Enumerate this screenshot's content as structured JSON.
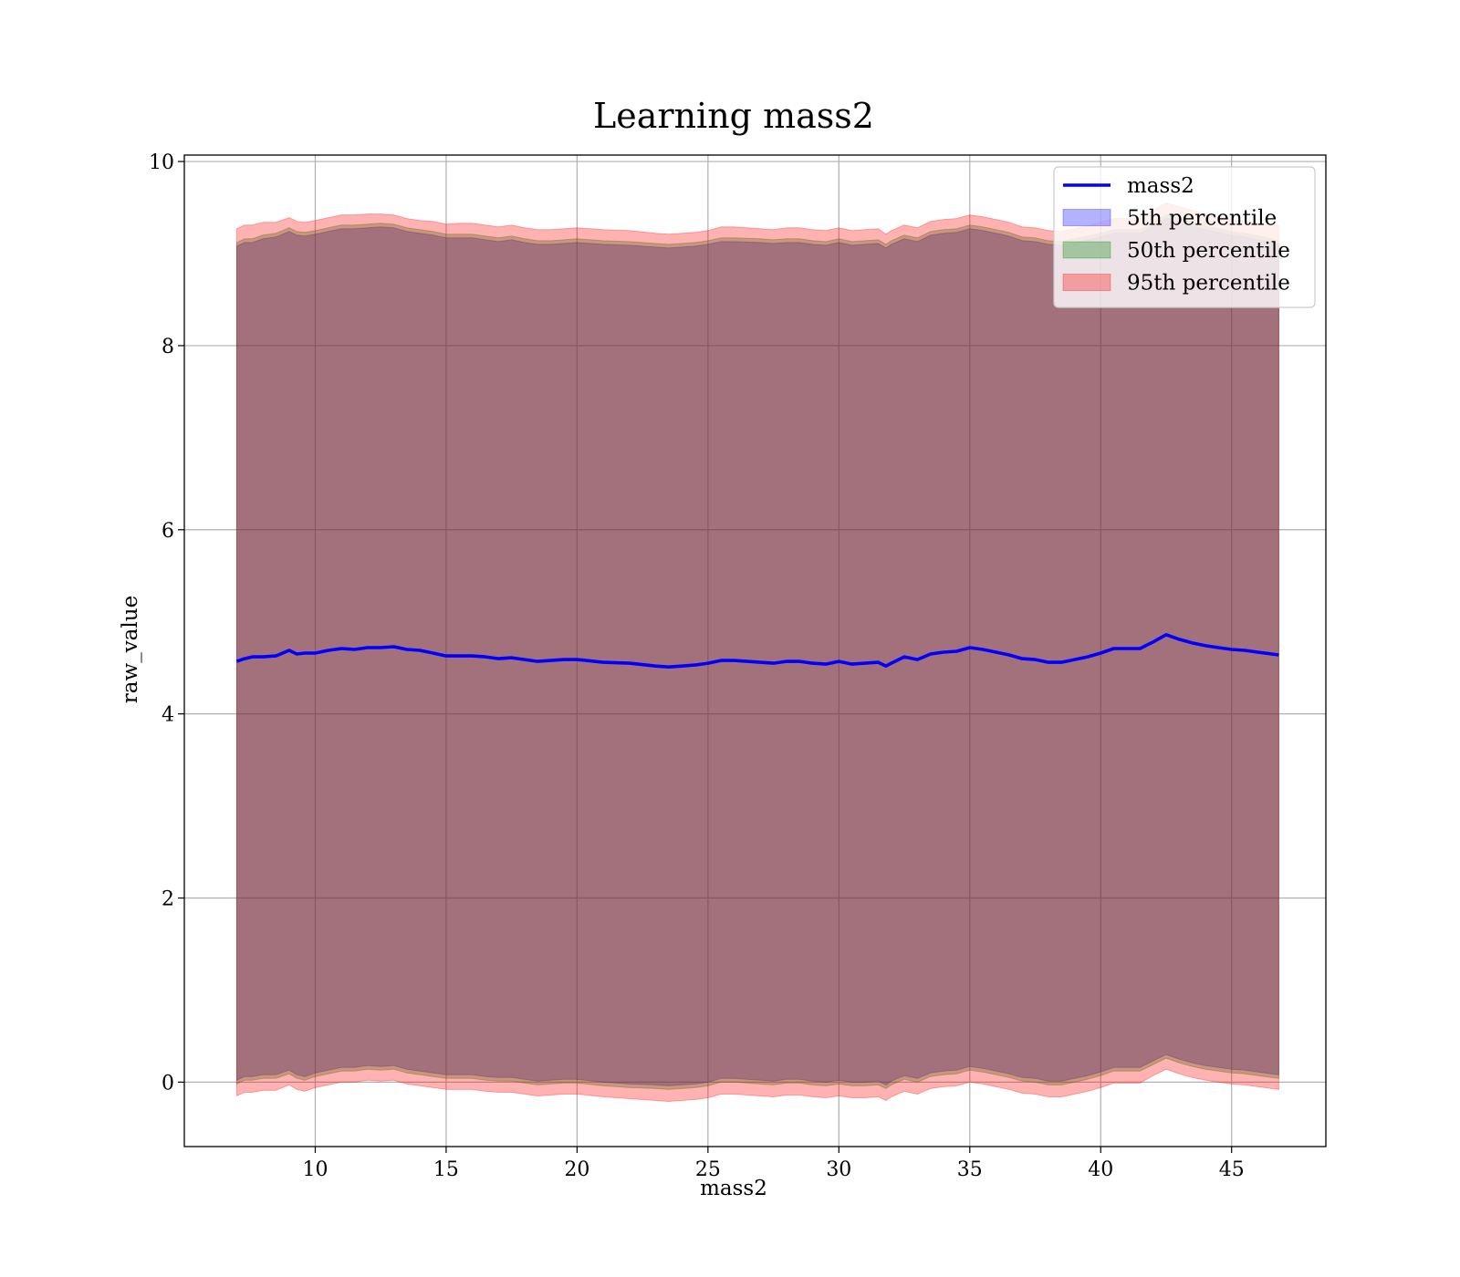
{
  "chart_data": {
    "type": "area",
    "title": "Learning mass2",
    "xlabel": "mass2",
    "ylabel": "raw_value",
    "xlim": [
      5.0,
      48.6
    ],
    "ylim": [
      -0.7,
      10.07
    ],
    "xticks": [
      10,
      15,
      20,
      25,
      30,
      35,
      40,
      45
    ],
    "yticks": [
      0,
      2,
      4,
      6,
      8,
      10
    ],
    "grid": true,
    "legend_position": "upper-right",
    "x": [
      7.0,
      7.3,
      7.6,
      8.0,
      8.5,
      9.0,
      9.3,
      9.6,
      10.0,
      10.5,
      11.0,
      11.5,
      12.0,
      12.5,
      13.0,
      13.5,
      14.0,
      14.5,
      15.0,
      15.5,
      16.0,
      16.5,
      17.0,
      17.5,
      18.0,
      18.5,
      19.0,
      19.5,
      20.0,
      21.0,
      22.0,
      23.0,
      23.5,
      24.0,
      24.5,
      25.0,
      25.5,
      26.0,
      27.0,
      27.5,
      28.0,
      28.5,
      29.0,
      29.5,
      30.0,
      30.5,
      31.0,
      31.5,
      31.8,
      32.0,
      32.5,
      33.0,
      33.5,
      34.0,
      34.5,
      35.0,
      35.5,
      36.0,
      36.5,
      37.0,
      37.5,
      38.0,
      38.5,
      39.0,
      39.5,
      40.0,
      40.5,
      41.0,
      41.5,
      42.0,
      42.5,
      43.0,
      43.5,
      44.0,
      44.5,
      45.0,
      45.5,
      46.0,
      46.8
    ],
    "series": [
      {
        "name": "mass2",
        "kind": "line",
        "color": "#0000ff",
        "values": [
          4.57,
          4.6,
          4.62,
          4.62,
          4.63,
          4.69,
          4.65,
          4.66,
          4.66,
          4.69,
          4.71,
          4.7,
          4.72,
          4.72,
          4.73,
          4.7,
          4.69,
          4.66,
          4.63,
          4.63,
          4.63,
          4.62,
          4.6,
          4.61,
          4.59,
          4.57,
          4.58,
          4.59,
          4.59,
          4.56,
          4.55,
          4.52,
          4.51,
          4.52,
          4.53,
          4.55,
          4.58,
          4.58,
          4.56,
          4.55,
          4.57,
          4.57,
          4.55,
          4.54,
          4.57,
          4.54,
          4.55,
          4.56,
          4.52,
          4.55,
          4.62,
          4.59,
          4.65,
          4.67,
          4.68,
          4.72,
          4.7,
          4.67,
          4.64,
          4.6,
          4.59,
          4.56,
          4.56,
          4.59,
          4.62,
          4.66,
          4.71,
          4.71,
          4.71,
          4.78,
          4.86,
          4.81,
          4.77,
          4.74,
          4.72,
          4.7,
          4.69,
          4.67,
          4.64
        ]
      },
      {
        "name": "5th percentile",
        "kind": "band",
        "color": "#0000ff",
        "lower": [
          0.02,
          0.06,
          0.06,
          0.08,
          0.08,
          0.13,
          0.08,
          0.06,
          0.1,
          0.13,
          0.16,
          0.16,
          0.18,
          0.17,
          0.18,
          0.14,
          0.12,
          0.1,
          0.08,
          0.08,
          0.08,
          0.06,
          0.05,
          0.05,
          0.03,
          0.01,
          0.02,
          0.03,
          0.03,
          0.0,
          -0.02,
          -0.03,
          -0.04,
          -0.03,
          -0.02,
          0.0,
          0.04,
          0.04,
          0.02,
          0.01,
          0.03,
          0.03,
          0.01,
          0.0,
          0.02,
          0.0,
          0.0,
          0.01,
          -0.03,
          0.01,
          0.07,
          0.04,
          0.1,
          0.12,
          0.13,
          0.17,
          0.15,
          0.12,
          0.09,
          0.05,
          0.04,
          0.01,
          0.01,
          0.04,
          0.07,
          0.11,
          0.16,
          0.16,
          0.16,
          0.23,
          0.3,
          0.25,
          0.21,
          0.18,
          0.16,
          0.14,
          0.13,
          0.11,
          0.08
        ],
        "upper": [
          9.08,
          9.12,
          9.12,
          9.16,
          9.18,
          9.24,
          9.2,
          9.19,
          9.21,
          9.24,
          9.27,
          9.27,
          9.28,
          9.29,
          9.28,
          9.24,
          9.22,
          9.2,
          9.17,
          9.17,
          9.17,
          9.15,
          9.13,
          9.15,
          9.12,
          9.1,
          9.1,
          9.11,
          9.12,
          9.1,
          9.09,
          9.07,
          9.06,
          9.07,
          9.08,
          9.1,
          9.13,
          9.13,
          9.12,
          9.11,
          9.12,
          9.12,
          9.1,
          9.09,
          9.12,
          9.09,
          9.1,
          9.11,
          9.06,
          9.1,
          9.16,
          9.13,
          9.2,
          9.22,
          9.23,
          9.27,
          9.25,
          9.22,
          9.19,
          9.14,
          9.13,
          9.1,
          9.09,
          9.12,
          9.15,
          9.18,
          9.22,
          9.22,
          9.22,
          9.3,
          9.38,
          9.34,
          9.3,
          9.26,
          9.23,
          9.2,
          9.18,
          9.15,
          9.1
        ]
      },
      {
        "name": "50th percentile",
        "kind": "band",
        "color": "#008000",
        "lower": [
          -0.02,
          0.02,
          0.02,
          0.04,
          0.04,
          0.09,
          0.04,
          0.02,
          0.06,
          0.09,
          0.12,
          0.12,
          0.14,
          0.13,
          0.14,
          0.1,
          0.08,
          0.06,
          0.04,
          0.04,
          0.04,
          0.02,
          0.01,
          0.01,
          -0.01,
          -0.03,
          -0.02,
          -0.01,
          -0.01,
          -0.04,
          -0.06,
          -0.07,
          -0.08,
          -0.07,
          -0.06,
          -0.04,
          0.0,
          0.0,
          -0.02,
          -0.03,
          -0.01,
          -0.01,
          -0.03,
          -0.04,
          -0.02,
          -0.04,
          -0.04,
          -0.03,
          -0.07,
          -0.03,
          0.03,
          0.0,
          0.06,
          0.08,
          0.09,
          0.13,
          0.11,
          0.08,
          0.05,
          0.01,
          0.0,
          -0.03,
          -0.03,
          0.0,
          0.03,
          0.07,
          0.12,
          0.12,
          0.12,
          0.19,
          0.26,
          0.21,
          0.17,
          0.14,
          0.12,
          0.1,
          0.09,
          0.07,
          0.04
        ],
        "upper": [
          9.12,
          9.16,
          9.16,
          9.2,
          9.22,
          9.28,
          9.24,
          9.23,
          9.25,
          9.28,
          9.31,
          9.31,
          9.32,
          9.33,
          9.32,
          9.28,
          9.26,
          9.24,
          9.21,
          9.21,
          9.21,
          9.19,
          9.17,
          9.19,
          9.16,
          9.14,
          9.14,
          9.15,
          9.16,
          9.14,
          9.13,
          9.11,
          9.1,
          9.11,
          9.12,
          9.14,
          9.17,
          9.17,
          9.16,
          9.15,
          9.16,
          9.16,
          9.14,
          9.13,
          9.16,
          9.13,
          9.14,
          9.15,
          9.1,
          9.14,
          9.2,
          9.17,
          9.24,
          9.26,
          9.27,
          9.31,
          9.29,
          9.26,
          9.23,
          9.18,
          9.17,
          9.14,
          9.13,
          9.16,
          9.19,
          9.22,
          9.26,
          9.26,
          9.26,
          9.34,
          9.42,
          9.38,
          9.34,
          9.3,
          9.27,
          9.24,
          9.22,
          9.19,
          9.14
        ]
      },
      {
        "name": "95th percentile",
        "kind": "band",
        "color": "#ff0000",
        "lower": [
          -0.15,
          -0.11,
          -0.11,
          -0.09,
          -0.09,
          -0.03,
          -0.08,
          -0.1,
          -0.06,
          -0.03,
          0.0,
          0.0,
          0.02,
          0.01,
          0.02,
          -0.02,
          -0.04,
          -0.06,
          -0.08,
          -0.08,
          -0.08,
          -0.1,
          -0.11,
          -0.11,
          -0.13,
          -0.15,
          -0.14,
          -0.13,
          -0.13,
          -0.16,
          -0.18,
          -0.2,
          -0.21,
          -0.2,
          -0.19,
          -0.17,
          -0.13,
          -0.13,
          -0.15,
          -0.16,
          -0.14,
          -0.14,
          -0.16,
          -0.17,
          -0.15,
          -0.17,
          -0.17,
          -0.16,
          -0.2,
          -0.16,
          -0.1,
          -0.13,
          -0.07,
          -0.05,
          -0.04,
          0.0,
          -0.02,
          -0.05,
          -0.08,
          -0.12,
          -0.13,
          -0.16,
          -0.16,
          -0.13,
          -0.1,
          -0.06,
          -0.01,
          -0.01,
          -0.01,
          0.07,
          0.14,
          0.09,
          0.05,
          0.02,
          0.0,
          -0.02,
          -0.03,
          -0.05,
          -0.08
        ],
        "upper": [
          9.27,
          9.31,
          9.31,
          9.34,
          9.34,
          9.39,
          9.35,
          9.34,
          9.36,
          9.39,
          9.42,
          9.42,
          9.43,
          9.43,
          9.42,
          9.38,
          9.36,
          9.35,
          9.32,
          9.33,
          9.33,
          9.31,
          9.29,
          9.31,
          9.28,
          9.26,
          9.26,
          9.27,
          9.28,
          9.26,
          9.25,
          9.22,
          9.21,
          9.22,
          9.23,
          9.25,
          9.29,
          9.29,
          9.27,
          9.26,
          9.28,
          9.28,
          9.26,
          9.25,
          9.28,
          9.25,
          9.26,
          9.27,
          9.21,
          9.25,
          9.31,
          9.28,
          9.35,
          9.37,
          9.38,
          9.42,
          9.4,
          9.37,
          9.34,
          9.29,
          9.28,
          9.25,
          9.24,
          9.27,
          9.3,
          9.34,
          9.38,
          9.38,
          9.38,
          9.47,
          9.55,
          9.51,
          9.47,
          9.43,
          9.4,
          9.37,
          9.35,
          9.33,
          9.3
        ]
      }
    ]
  }
}
